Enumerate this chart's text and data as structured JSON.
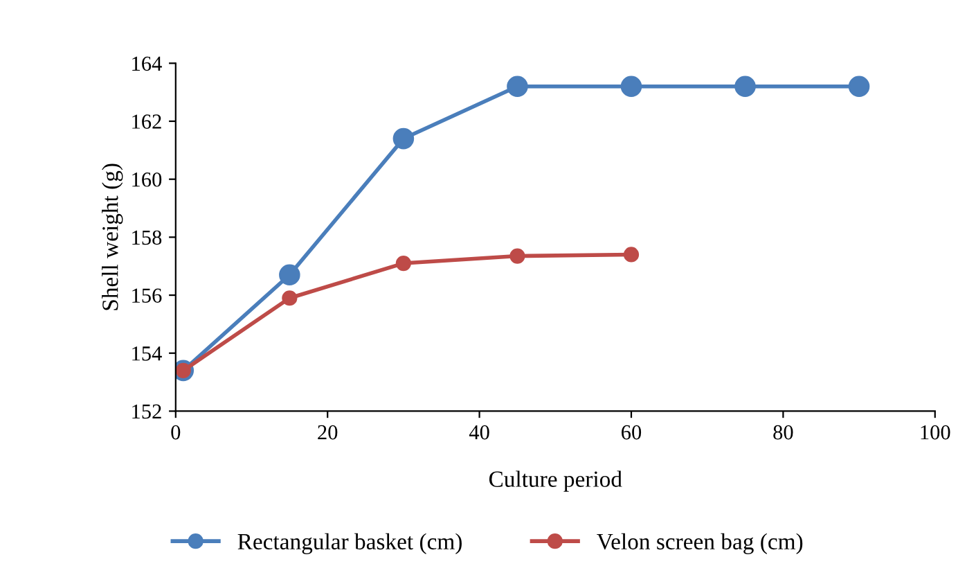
{
  "chart_data": {
    "type": "line",
    "xlabel": "Culture period",
    "ylabel": "Shell weight (g)",
    "xlim": [
      0,
      100
    ],
    "xticks": [
      0,
      20,
      40,
      60,
      80,
      100
    ],
    "ylim": [
      152,
      164
    ],
    "yticks": [
      152,
      154,
      156,
      158,
      160,
      162,
      164
    ],
    "grid": false,
    "legend": "bottom",
    "marker": "circle",
    "line_style": "solid",
    "series": [
      {
        "name": "Rectangular basket (cm)",
        "color": "#4a7ebb",
        "x": [
          1,
          15,
          30,
          45,
          60,
          75,
          90
        ],
        "values": [
          153.4,
          156.7,
          161.4,
          163.2,
          163.2,
          163.2,
          163.2
        ]
      },
      {
        "name": "Velon screen bag (cm)",
        "color": "#be4b48",
        "x": [
          1,
          15,
          30,
          45,
          60
        ],
        "values": [
          153.4,
          155.9,
          157.1,
          157.35,
          157.4
        ]
      }
    ]
  }
}
